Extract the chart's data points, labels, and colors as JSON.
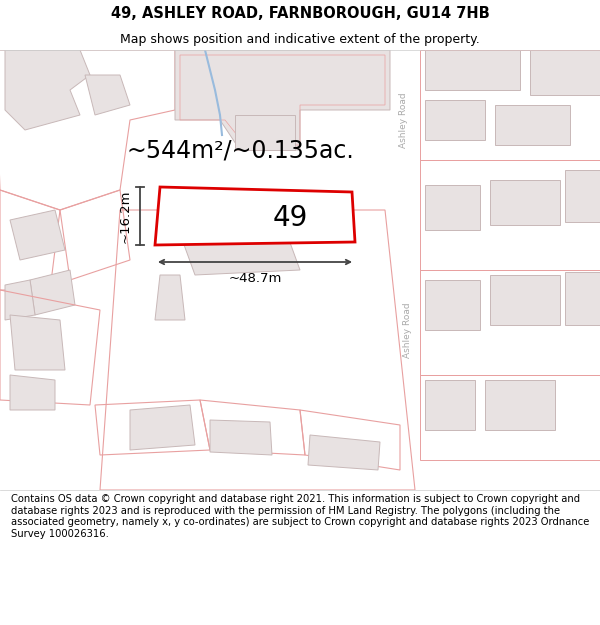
{
  "title": "49, ASHLEY ROAD, FARNBOROUGH, GU14 7HB",
  "subtitle": "Map shows position and indicative extent of the property.",
  "area_text": "~544m²/~0.135ac.",
  "label_49": "49",
  "dim_width": "~48.7m",
  "dim_height": "~16.2m",
  "footer": "Contains OS data © Crown copyright and database right 2021. This information is subject to Crown copyright and database rights 2023 and is reproduced with the permission of HM Land Registry. The polygons (including the associated geometry, namely x, y co-ordinates) are subject to Crown copyright and database rights 2023 Ordnance Survey 100026316.",
  "bg_color": "#ffffff",
  "map_bg": "#ffffff",
  "road_color": "#ffffff",
  "building_fill": "#e8e2e2",
  "building_edge": "#c8b8b8",
  "plot_edge": "#e8a0a0",
  "highlight_color": "#dd0000",
  "highlight_fill": "#ffffff",
  "road_label_color": "#aaaaaa",
  "dim_color": "#444444",
  "text_color": "#000000",
  "title_fontsize": 10.5,
  "subtitle_fontsize": 9,
  "area_fontsize": 17,
  "label_fontsize": 20,
  "dim_fontsize": 9.5,
  "footer_fontsize": 7.2
}
